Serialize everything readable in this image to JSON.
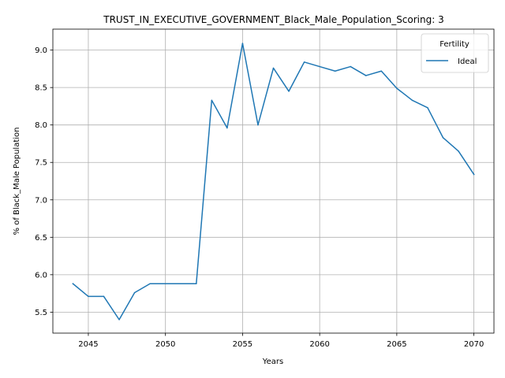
{
  "chart_data": {
    "type": "line",
    "title": "TRUST_IN_EXECUTIVE_GOVERNMENT_Black_Male_Population_Scoring: 3",
    "xlabel": "Years",
    "ylabel": "% of Black_Male Population",
    "xlim": [
      2042.7,
      2071.3
    ],
    "ylim": [
      5.22,
      9.28
    ],
    "xticks": [
      2045,
      2050,
      2055,
      2060,
      2065,
      2070
    ],
    "xtick_labels": [
      "2045",
      "2050",
      "2055",
      "2060",
      "2065",
      "2070"
    ],
    "yticks": [
      5.5,
      6.0,
      6.5,
      7.0,
      7.5,
      8.0,
      8.5,
      9.0
    ],
    "ytick_labels": [
      "5.5",
      "6.0",
      "6.5",
      "7.0",
      "7.5",
      "8.0",
      "8.5",
      "9.0"
    ],
    "grid": true,
    "legend": {
      "title": "Fertility",
      "placement": "top-right"
    },
    "series": [
      {
        "name": "Ideal",
        "color": "#1f77b4",
        "x": [
          2044,
          2045,
          2046,
          2047,
          2048,
          2049,
          2050,
          2051,
          2052,
          2053,
          2054,
          2055,
          2056,
          2057,
          2058,
          2059,
          2060,
          2061,
          2062,
          2063,
          2064,
          2065,
          2066,
          2067,
          2068,
          2069,
          2070
        ],
        "y": [
          5.88,
          5.71,
          5.71,
          5.4,
          5.76,
          5.88,
          5.88,
          5.88,
          5.88,
          8.33,
          7.96,
          9.09,
          8.0,
          8.76,
          8.45,
          8.84,
          8.78,
          8.72,
          8.78,
          8.66,
          8.72,
          8.49,
          8.33,
          8.23,
          7.83,
          7.65,
          7.34
        ]
      }
    ]
  }
}
